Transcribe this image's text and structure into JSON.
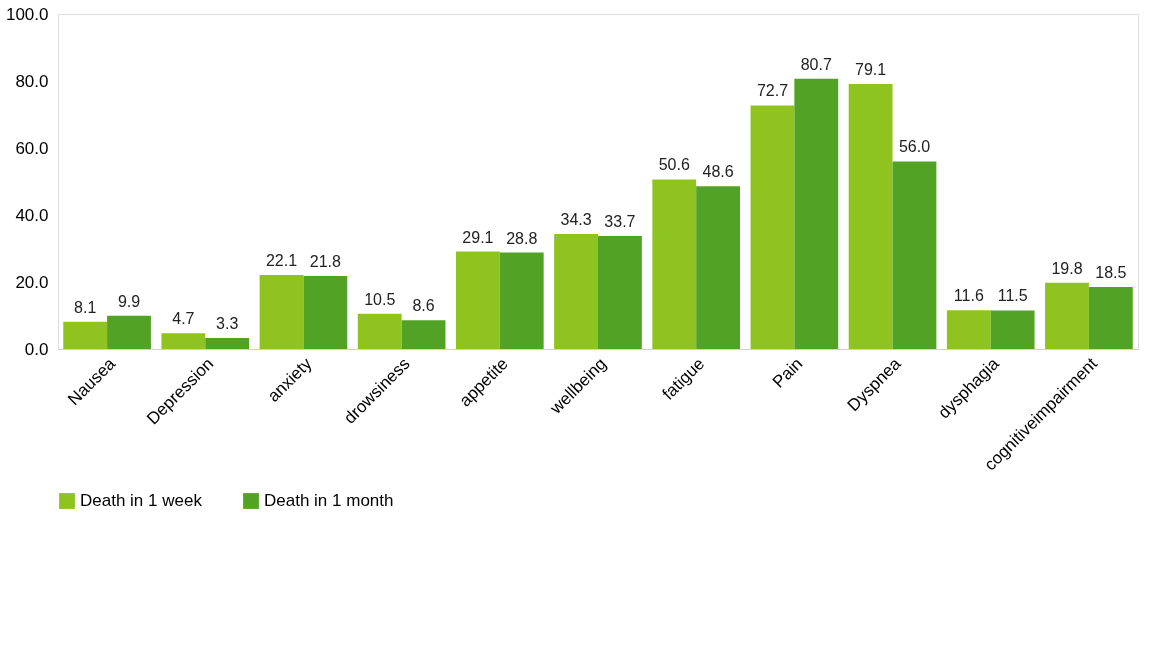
{
  "chart_data": {
    "type": "bar",
    "categories": [
      "Nausea",
      "Depression",
      "anxiety",
      "drowsiness",
      "appetite",
      "wellbeing",
      "fatigue",
      "Pain",
      "Dyspnea",
      "dysphagia",
      "cognitiveimpairment"
    ],
    "series": [
      {
        "name": "Death in 1 week",
        "color": "#8fc31f",
        "values": [
          8.1,
          4.7,
          22.1,
          10.5,
          29.1,
          34.3,
          50.6,
          72.7,
          79.1,
          11.6,
          19.8
        ],
        "value_labels": [
          "8.1",
          "4.7",
          "22.1",
          "10.5",
          "29.1",
          "34.3",
          "50.6",
          "72.7",
          "79.1",
          "11.6",
          "19.8"
        ]
      },
      {
        "name": "Death in 1 month",
        "color": "#52a325",
        "values": [
          9.9,
          3.3,
          21.8,
          8.6,
          28.8,
          33.7,
          48.6,
          80.7,
          56.0,
          11.5,
          18.5
        ],
        "value_labels": [
          "9.9",
          "3.3",
          "21.8",
          "8.6",
          "28.8",
          "33.7",
          "48.6",
          "80.7",
          "56.0",
          "11.5",
          "18.5"
        ]
      }
    ],
    "ylim": [
      0,
      100
    ],
    "yticks": [
      {
        "value": 0,
        "label": "0.0"
      },
      {
        "value": 20,
        "label": "20.0"
      },
      {
        "value": 40,
        "label": "40.0"
      },
      {
        "value": 60,
        "label": "60.0"
      },
      {
        "value": 80,
        "label": "80.0"
      },
      {
        "value": 100,
        "label": "100.0"
      }
    ],
    "grid": false,
    "legend": "bottom"
  }
}
